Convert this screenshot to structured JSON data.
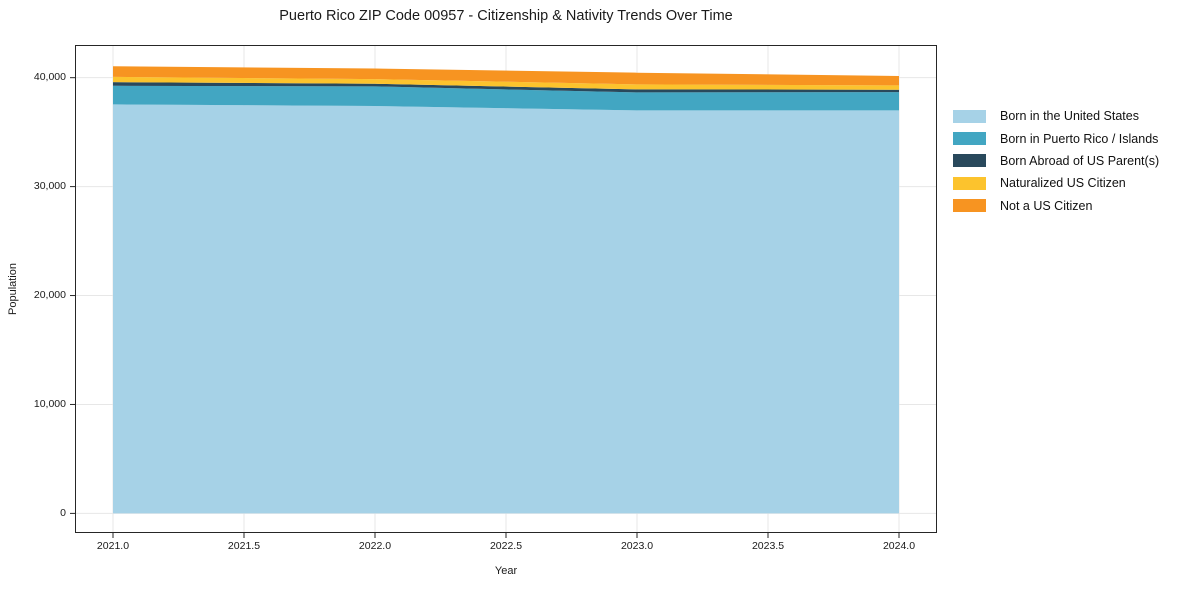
{
  "title": "Puerto Rico ZIP Code 00957 - Citizenship & Nativity Trends Over Time",
  "chart_data": {
    "type": "area",
    "stacked": true,
    "title": "Puerto Rico ZIP Code 00957 - Citizenship & Nativity Trends Over Time",
    "xlabel": "Year",
    "ylabel": "Population",
    "x": [
      2021,
      2022,
      2023,
      2024
    ],
    "series": [
      {
        "name": "Born in the United States",
        "color": "#a6d2e7",
        "values": [
          37550,
          37400,
          37000,
          37000
        ]
      },
      {
        "name": "Born in Puerto Rico / Islands",
        "color": "#42a6c2",
        "values": [
          1700,
          1800,
          1650,
          1680
        ]
      },
      {
        "name": "Born Abroad of US Parent(s)",
        "color": "#29495c",
        "values": [
          340,
          240,
          275,
          220
        ]
      },
      {
        "name": "Naturalized US Citizen",
        "color": "#fcc32d",
        "values": [
          480,
          430,
          460,
          395
        ]
      },
      {
        "name": "Not a US Citizen",
        "color": "#f79421",
        "values": [
          980,
          970,
          1070,
          855
        ]
      }
    ],
    "stack_totals": [
      41050,
      40840,
      40455,
      40150
    ],
    "x_ticks": [
      2021.0,
      2021.5,
      2022.0,
      2022.5,
      2023.0,
      2023.5,
      2024.0
    ],
    "x_tick_labels": [
      "2021.0",
      "2021.5",
      "2022.0",
      "2022.5",
      "2023.0",
      "2023.5",
      "2024.0"
    ],
    "y_ticks": [
      0,
      10000,
      20000,
      30000,
      40000
    ],
    "y_tick_labels": [
      "0",
      "10,000",
      "20,000",
      "30,000",
      "40,000"
    ],
    "xlim": [
      2020.855,
      2024.145
    ],
    "ylim": [
      -1800,
      43000
    ],
    "grid": true,
    "legend_position": "right-outside",
    "colors": {
      "background": "#ffffff",
      "grid": "#e7e7e7",
      "spine": "#262626",
      "text": "#1a1a1a"
    }
  }
}
